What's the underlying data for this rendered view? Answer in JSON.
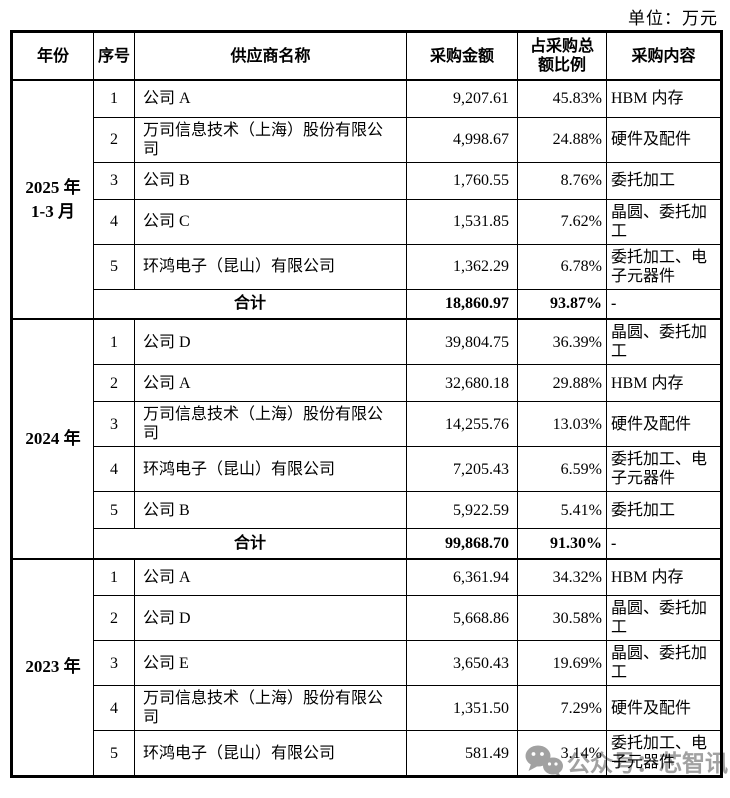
{
  "unit_label": "单位：万元",
  "colors": {
    "border": "#000000",
    "text": "#000000",
    "watermark": "#8a8a8a",
    "background": "#ffffff"
  },
  "table": {
    "headers": [
      "年份",
      "序号",
      "供应商名称",
      "采购金额",
      "占采购总\n额比例",
      "采购内容"
    ]
  },
  "sections": [
    {
      "year": "2025 年\n1-3 月",
      "rows": [
        {
          "no": "1",
          "supplier": "公司 A",
          "amount": "9,207.61",
          "pct": "45.83%",
          "content": "HBM 内存"
        },
        {
          "no": "2",
          "supplier": "万司信息技术（上海）股份有限公司",
          "amount": "4,998.67",
          "pct": "24.88%",
          "content": "硬件及配件"
        },
        {
          "no": "3",
          "supplier": "公司 B",
          "amount": "1,760.55",
          "pct": "8.76%",
          "content": "委托加工"
        },
        {
          "no": "4",
          "supplier": "公司 C",
          "amount": "1,531.85",
          "pct": "7.62%",
          "content": "晶圆、委托加工"
        },
        {
          "no": "5",
          "supplier": "环鸿电子（昆山）有限公司",
          "amount": "1,362.29",
          "pct": "6.78%",
          "content": "委托加工、电子元器件"
        }
      ],
      "total": {
        "label": "合计",
        "amount": "18,860.97",
        "pct": "93.87%",
        "content": "-"
      }
    },
    {
      "year": "2024 年",
      "rows": [
        {
          "no": "1",
          "supplier": "公司 D",
          "amount": "39,804.75",
          "pct": "36.39%",
          "content": "晶圆、委托加工"
        },
        {
          "no": "2",
          "supplier": "公司 A",
          "amount": "32,680.18",
          "pct": "29.88%",
          "content": "HBM 内存"
        },
        {
          "no": "3",
          "supplier": "万司信息技术（上海）股份有限公司",
          "amount": "14,255.76",
          "pct": "13.03%",
          "content": "硬件及配件"
        },
        {
          "no": "4",
          "supplier": "环鸿电子（昆山）有限公司",
          "amount": "7,205.43",
          "pct": "6.59%",
          "content": "委托加工、电子元器件"
        },
        {
          "no": "5",
          "supplier": "公司 B",
          "amount": "5,922.59",
          "pct": "5.41%",
          "content": "委托加工"
        }
      ],
      "total": {
        "label": "合计",
        "amount": "99,868.70",
        "pct": "91.30%",
        "content": "-"
      }
    },
    {
      "year": "2023 年",
      "rows": [
        {
          "no": "1",
          "supplier": "公司 A",
          "amount": "6,361.94",
          "pct": "34.32%",
          "content": "HBM 内存"
        },
        {
          "no": "2",
          "supplier": "公司 D",
          "amount": "5,668.86",
          "pct": "30.58%",
          "content": "晶圆、委托加工"
        },
        {
          "no": "3",
          "supplier": "公司 E",
          "amount": "3,650.43",
          "pct": "19.69%",
          "content": "晶圆、委托加工"
        },
        {
          "no": "4",
          "supplier": "万司信息技术（上海）股份有限公司",
          "amount": "1,351.50",
          "pct": "7.29%",
          "content": "硬件及配件"
        },
        {
          "no": "5",
          "supplier": "环鸿电子（昆山）有限公司",
          "amount": "581.49",
          "pct": "3.14%",
          "content": "委托加工、电子元器件"
        }
      ]
    }
  ],
  "watermark": {
    "text": "公众号：芯智讯",
    "icon": "wechat-icon"
  }
}
